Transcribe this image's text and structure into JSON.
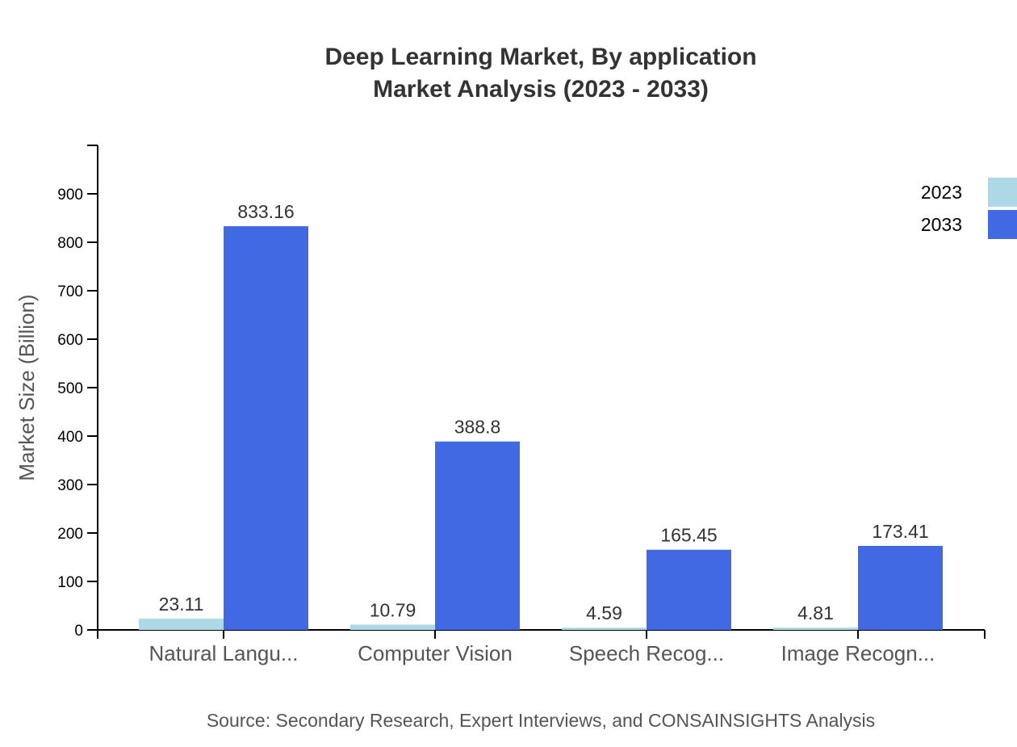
{
  "chart_data": {
    "type": "bar",
    "title": "Deep Learning Market, By application",
    "subtitle": "Market Analysis (2023 - 2033)",
    "ylabel": "Market Size (Billion)",
    "xlabel": "",
    "ylim": [
      0,
      1000
    ],
    "yticks": [
      0,
      100,
      200,
      300,
      400,
      500,
      600,
      700,
      800,
      900
    ],
    "categories": [
      "Natural Langu...",
      "Computer Vision",
      "Speech Recog...",
      "Image Recogn..."
    ],
    "series": [
      {
        "name": "2023",
        "color": "#add8e6",
        "values": [
          23.11,
          10.79,
          4.59,
          4.81
        ]
      },
      {
        "name": "2033",
        "color": "#4169e1",
        "values": [
          833.16,
          388.8,
          165.45,
          173.41
        ]
      }
    ],
    "legend": "top-right",
    "grid": false,
    "source": "Source: Secondary Research, Expert Interviews, and CONSAINSIGHTS Analysis"
  }
}
